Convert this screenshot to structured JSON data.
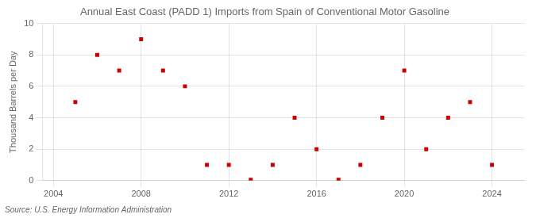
{
  "chart_data": {
    "type": "scatter",
    "title": "Annual East Coast (PADD 1) Imports from Spain of Conventional Motor Gasoline",
    "ylabel": "Thousand Barrels per Day",
    "annotations": [
      "Source: U.S. Energy Information Administration"
    ],
    "x": [
      2005,
      2006,
      2007,
      2008,
      2009,
      2010,
      2011,
      2012,
      2013,
      2014,
      2015,
      2016,
      2017,
      2018,
      2019,
      2020,
      2021,
      2022,
      2023,
      2024
    ],
    "values": [
      5,
      8,
      7,
      9,
      7,
      6,
      1,
      1,
      0.05,
      1,
      4,
      2,
      0.05,
      1,
      4,
      7,
      2,
      4,
      5,
      1
    ],
    "color": "#cc0000",
    "marker": "square",
    "xlim": [
      2003.5,
      2025.5
    ],
    "xticks": [
      2004,
      2008,
      2012,
      2016,
      2020,
      2024
    ],
    "ylim": [
      0,
      10
    ],
    "yticks": [
      0,
      2,
      4,
      6,
      8,
      10
    ],
    "grid": true
  }
}
